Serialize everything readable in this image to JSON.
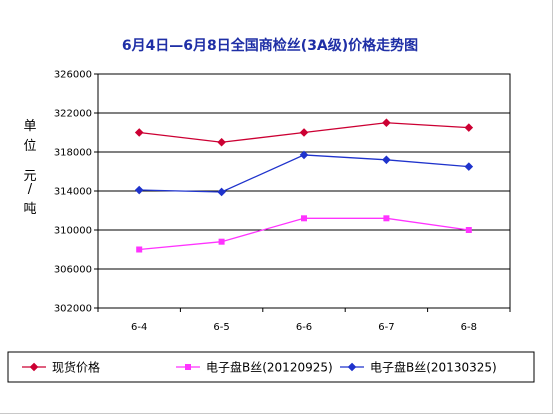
{
  "chart_data": {
    "type": "line",
    "title": "6月4日—6月8日全国商检丝(3A级)价格走势图",
    "ylabel": [
      "单",
      "位",
      "",
      "元",
      "/",
      "吨"
    ],
    "xlabel": "",
    "categories": [
      "6-4",
      "6-5",
      "6-6",
      "6-7",
      "6-8"
    ],
    "ylim": [
      302000,
      326000
    ],
    "yticks": [
      302000,
      306000,
      310000,
      314000,
      318000,
      322000,
      326000
    ],
    "grid": true,
    "legend_position": "bottom",
    "series": [
      {
        "name": "现货价格",
        "color": "#cc0033",
        "marker": "diamond",
        "values": [
          320000,
          319000,
          320000,
          321000,
          320500
        ]
      },
      {
        "name": "电子盘B丝(20120925)",
        "color": "#ff33ff",
        "marker": "square",
        "values": [
          308000,
          308800,
          311200,
          311200,
          310000
        ]
      },
      {
        "name": "电子盘B丝(20130325)",
        "color": "#1f33cc",
        "marker": "diamond",
        "values": [
          314100,
          313900,
          317700,
          317200,
          316500
        ]
      }
    ]
  },
  "colors": {
    "title": "#1f2fa6",
    "plot_border": "#000000",
    "grid": "#000000"
  }
}
